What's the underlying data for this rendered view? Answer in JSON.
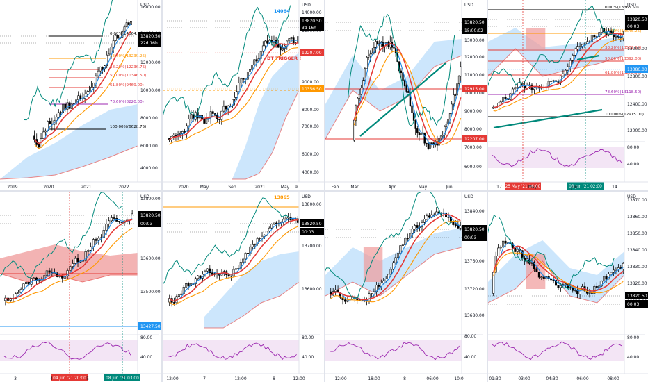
{
  "layout": {
    "name": "tradingview-multi-chart-8-panels"
  },
  "colors": {
    "up": "#ffffff",
    "down": "#000000",
    "wick": "#000000",
    "kijun": "#e53935",
    "tenkan": "#1e88e5",
    "chikou": "#00897b",
    "ema": "#ff9800",
    "cloud_bull": "#bbdefb",
    "cloud_bear": "#ef9a9a",
    "fib": "#f57c00",
    "rsi": "#9c27b0",
    "rsi_bg": "#f3e5f5",
    "price_black": "#000000",
    "price_blue": "#2196f3",
    "price_red": "#e53935",
    "price_orange": "#ff9800",
    "price_teal": "#00897b"
  },
  "panels": [
    {
      "id": "p1",
      "currency": "USD",
      "x_labels": [
        "2019",
        "2020",
        "2021",
        "2022"
      ],
      "y_labels": [
        "16000.00",
        "14000.00",
        "12000.00",
        "10000.00",
        "8000.00",
        "6000.00",
        "4000.00"
      ],
      "fib_labels": [
        "0.00%(14064.00)",
        "23.60%(13239.25)",
        "38.20%(12236.75)",
        "50.00%(10346.50)",
        "61.80%(9469.00)",
        "78.60%(8220.00)",
        "100.00%(6628.75)"
      ],
      "price_tags": [
        {
          "text": "13820.50",
          "bg": "#000000"
        },
        {
          "text": "22d 16h",
          "bg": "#000000"
        }
      ]
    },
    {
      "id": "p2",
      "currency": "USD",
      "x_labels": [
        "2020",
        "May",
        "Sep",
        "2021",
        "May",
        "9"
      ],
      "y_labels": [
        "14000.00",
        "12000.00",
        "10000.00",
        "9000.00",
        "8000.00",
        "7000.00",
        "6000.00",
        "4000.00"
      ],
      "annotations": [
        {
          "text": "14064",
          "color": "#2196f3"
        },
        {
          "text": "DT TRIGGER !",
          "color": "#e53935"
        }
      ],
      "price_tags": [
        {
          "text": "13820.50",
          "bg": "#000000"
        },
        {
          "text": "3d 16h",
          "bg": "#000000"
        },
        {
          "text": "12207.00",
          "bg": "#e53935"
        },
        {
          "text": "10356.50",
          "bg": "#ff9800"
        }
      ]
    },
    {
      "id": "p3",
      "currency": "USD",
      "x_labels": [
        "Feb",
        "Mar",
        "Apr",
        "May",
        "Jun"
      ],
      "y_labels": [
        "14000.00",
        "13000.00",
        "12000.00",
        "11000.00",
        "10000.00",
        "9000.00",
        "8000.00",
        "7000.00",
        "6000.00"
      ],
      "price_tags": [
        {
          "text": "13820.50",
          "bg": "#000000"
        },
        {
          "text": "15:00:02",
          "bg": "#000000"
        },
        {
          "text": "12915.00",
          "bg": "#e53935"
        },
        {
          "text": "12207.00",
          "bg": "#e53935"
        }
      ]
    },
    {
      "id": "p4",
      "currency": "USD",
      "x_labels": [
        "17",
        "May",
        "Jun",
        "14"
      ],
      "y_labels": [
        "13600.00",
        "13200.00",
        "12800.00",
        "12400.00",
        "12000.00",
        "80.00",
        "40.00"
      ],
      "fib_labels": [
        "0.00%(13865.50)",
        "23.60%(13645.25)",
        "38.20%(13502.50)",
        "50.00%(13392.00)",
        "61.80%(13278.00)",
        "78.60%(13118.50)",
        "100.00%(12915.00)"
      ],
      "date_tags": [
        {
          "text": "25 May '21 06:00",
          "bg": "#e53935"
        },
        {
          "text": "08 Jun '21 02:00",
          "bg": "#00897b"
        }
      ],
      "price_tags": [
        {
          "text": "13820.50",
          "bg": "#000000"
        },
        {
          "text": "00:03",
          "bg": "#000000"
        },
        {
          "text": "13386.00",
          "bg": "#2196f3"
        }
      ]
    },
    {
      "id": "p5",
      "currency": "USD",
      "x_labels": [
        "3",
        "4",
        "5",
        "7"
      ],
      "y_labels": [
        "13800.00",
        "13700.00",
        "13600.00",
        "13500.00",
        "80.00",
        "40.00"
      ],
      "date_tags": [
        {
          "text": "04 Jun '21 20:00",
          "bg": "#e53935"
        },
        {
          "text": "08 Jun '21 03:00",
          "bg": "#00897b"
        }
      ],
      "price_tags": [
        {
          "text": "13820.50",
          "bg": "#000000"
        },
        {
          "text": "00:03",
          "bg": "#000000"
        },
        {
          "text": "13427.50",
          "bg": "#2196f3"
        }
      ]
    },
    {
      "id": "p6",
      "currency": "USD",
      "x_labels": [
        "12:00",
        "7",
        "12:00",
        "8",
        "12:00"
      ],
      "y_labels": [
        "13800.00",
        "13700.00",
        "13600.00",
        "80.00",
        "40.00"
      ],
      "annotations": [
        {
          "text": "13865",
          "color": "#ff9800"
        }
      ],
      "price_tags": [
        {
          "text": "13820.50",
          "bg": "#000000"
        },
        {
          "text": "00:03",
          "bg": "#000000"
        }
      ]
    },
    {
      "id": "p7",
      "currency": "USD",
      "x_labels": [
        "12:00",
        "18:00",
        "8",
        "06:00",
        "10:0"
      ],
      "y_labels": [
        "13840.00",
        "13800.00",
        "13760.00",
        "13720.00",
        "13680.00",
        "80.00",
        "40.00"
      ],
      "price_tags": [
        {
          "text": "13820.50",
          "bg": "#000000"
        },
        {
          "text": "00:03",
          "bg": "#000000"
        }
      ]
    },
    {
      "id": "p8",
      "currency": "USD",
      "x_labels": [
        "01:30",
        "03:00",
        "04:30",
        "06:00",
        "08:00"
      ],
      "y_labels": [
        "13870.00",
        "13860.00",
        "13850.00",
        "13840.00",
        "13830.00",
        "13820.00",
        "13810.00",
        "80.00",
        "40.00"
      ],
      "price_tags": [
        {
          "text": "13820.50",
          "bg": "#000000"
        },
        {
          "text": "00:03",
          "bg": "#000000"
        }
      ]
    }
  ]
}
